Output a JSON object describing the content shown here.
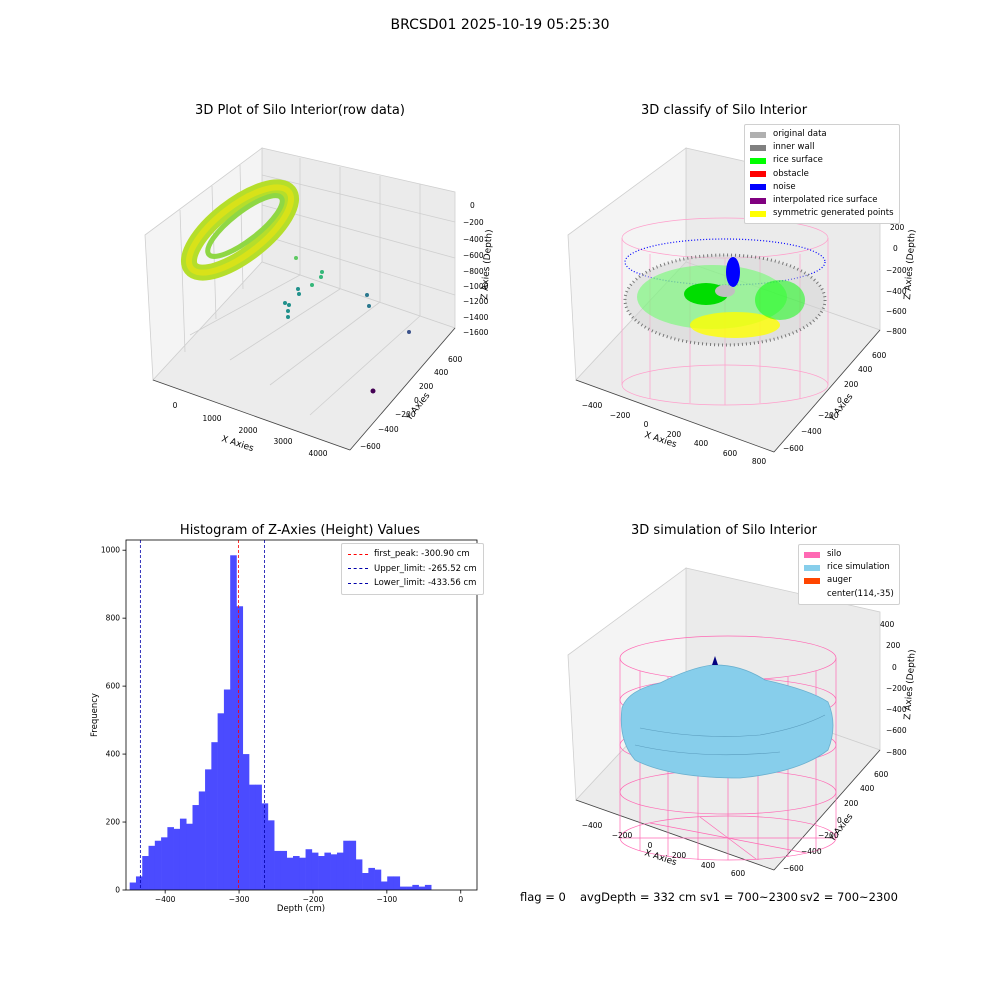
{
  "suptitle": "BRCSD01 2025-10-19 05:25:30",
  "footer": {
    "flag": "flag = 0",
    "avg": "avgDepth = 332 cm",
    "sv1": "sv1 = 700~2300",
    "sv2": "sv2 = 700~2300"
  },
  "colors": {
    "histogram": "#4b4bff",
    "silo": "#ff69b4",
    "rice_simulation": "#87ceeb",
    "auger": "#ff4500"
  },
  "chart_data": [
    {
      "type": "scatter",
      "projection": "3d",
      "title": "3D Plot of Silo Interior(row data)",
      "xlabel": "X Axies",
      "ylabel": "Y Axies",
      "zlabel": "Z Axies (Depth)",
      "x_ticks": [
        "0",
        "1000",
        "2000",
        "3000",
        "4000"
      ],
      "y_ticks": [
        "−600",
        "−400",
        "−200",
        "0",
        "200",
        "400",
        "600"
      ],
      "z_ticks": [
        "0",
        "−200",
        "−400",
        "−600",
        "−800",
        "−1000",
        "−1200",
        "−1400",
        "−1600"
      ],
      "colormap": "viridis"
    },
    {
      "type": "scatter",
      "projection": "3d",
      "title": "3D classify of Silo Interior",
      "xlabel": "X Axies",
      "ylabel": "Y Axies",
      "zlabel": "Z Axies (Depth)",
      "x_ticks": [
        "−400",
        "−200",
        "0",
        "200",
        "400",
        "600",
        "800"
      ],
      "y_ticks": [
        "−600",
        "−400",
        "−200",
        "0",
        "200",
        "400",
        "600"
      ],
      "z_ticks": [
        "200",
        "0",
        "−200",
        "−400",
        "−600",
        "−800"
      ],
      "legend": [
        {
          "label": "original data",
          "color": "#b0b0b0"
        },
        {
          "label": "inner wall",
          "color": "#808080"
        },
        {
          "label": "rice surface",
          "color": "#00ff00"
        },
        {
          "label": "obstacle",
          "color": "#ff0000"
        },
        {
          "label": "noise",
          "color": "#0000ff"
        },
        {
          "label": "interpolated rice surface",
          "color": "#800080"
        },
        {
          "label": "symmetric generated points",
          "color": "#ffff00"
        }
      ]
    },
    {
      "type": "bar",
      "title": "Histogram of Z-Axies (Height) Values",
      "xlabel": "Depth (cm)",
      "ylabel": "Frequency",
      "xlim": [
        -453,
        22
      ],
      "ylim": [
        0,
        1030
      ],
      "x_ticks": [
        -400,
        -300,
        -200,
        -100,
        0
      ],
      "y_ticks": [
        0,
        200,
        400,
        600,
        800,
        1000
      ],
      "bin_start": -448,
      "bin_width": 8.5,
      "values": [
        22,
        40,
        100,
        130,
        145,
        155,
        185,
        180,
        210,
        195,
        250,
        290,
        355,
        435,
        520,
        590,
        985,
        835,
        400,
        310,
        310,
        255,
        205,
        115,
        115,
        95,
        100,
        95,
        120,
        110,
        100,
        110,
        105,
        110,
        145,
        145,
        90,
        50,
        65,
        60,
        25,
        40,
        40,
        10,
        10,
        15,
        10,
        15
      ],
      "vlines": [
        {
          "label": "first_peak: -300.90 cm",
          "x": -300.9,
          "color": "#ff0000"
        },
        {
          "label": "Upper_limit: -265.52 cm",
          "x": -265.52,
          "color": "#0000aa"
        },
        {
          "label": "Lower_limit: -433.56 cm",
          "x": -433.56,
          "color": "#0000aa"
        }
      ]
    },
    {
      "type": "area",
      "projection": "3d",
      "title": "3D simulation of Silo Interior",
      "xlabel": "X Axies",
      "ylabel": "Y Axies",
      "zlabel": "Z Axies (Depth)",
      "x_ticks": [
        "−400",
        "−200",
        "0",
        "200",
        "400",
        "600"
      ],
      "y_ticks": [
        "−600",
        "−400",
        "−200",
        "0",
        "200",
        "400",
        "600"
      ],
      "z_ticks": [
        "400",
        "200",
        "0",
        "−200",
        "−400",
        "−600",
        "−800"
      ],
      "legend": [
        {
          "label": "silo",
          "color": "#ff69b4"
        },
        {
          "label": "rice simulation",
          "color": "#87ceeb"
        },
        {
          "label": "auger",
          "color": "#ff4500"
        },
        {
          "label": "center(114,-35)",
          "color": ""
        }
      ]
    }
  ]
}
